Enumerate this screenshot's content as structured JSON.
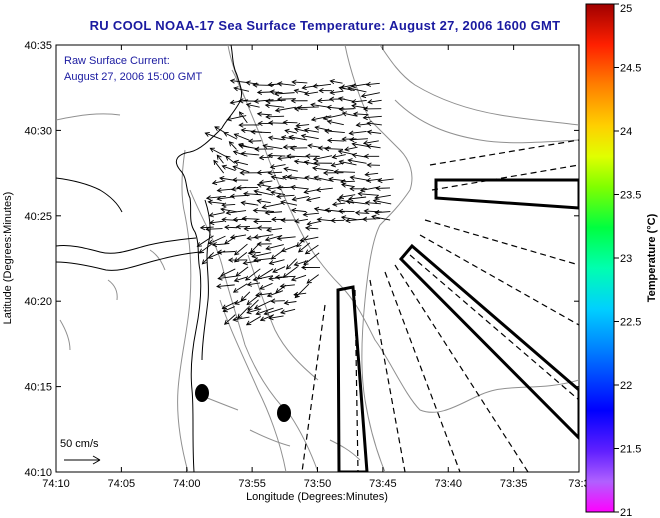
{
  "title": "RU COOL  NOAA-17  Sea Surface Temperature:  August 27, 2006 1600 GMT",
  "annotation": {
    "line1": "Raw Surface Current:",
    "line2": "August 27, 2006 15:00 GMT"
  },
  "axes": {
    "xlabel": "Longitude (Degrees:Minutes)",
    "ylabel": "Latitude (Degrees:Minutes)",
    "x_ticks": [
      "74:10",
      "74:05",
      "74:00",
      "73:55",
      "73:50",
      "73:45",
      "73:40",
      "73:35",
      "73:3"
    ],
    "y_ticks": [
      "40:35",
      "40:30",
      "40:25",
      "40:20",
      "40:15",
      "40:10"
    ]
  },
  "scale_label": "50 cm/s",
  "colorbar": {
    "label": "Temperature (°C)",
    "min": 21,
    "max": 25,
    "ticks": [
      "25",
      "24.5",
      "24",
      "23.5",
      "23",
      "22.5",
      "22",
      "21.5",
      "21"
    ]
  },
  "colors": {
    "title": "#1a1aa0",
    "annotation": "#1a1aa0",
    "bathymetry": "#909090",
    "coastline": "#000000"
  }
}
